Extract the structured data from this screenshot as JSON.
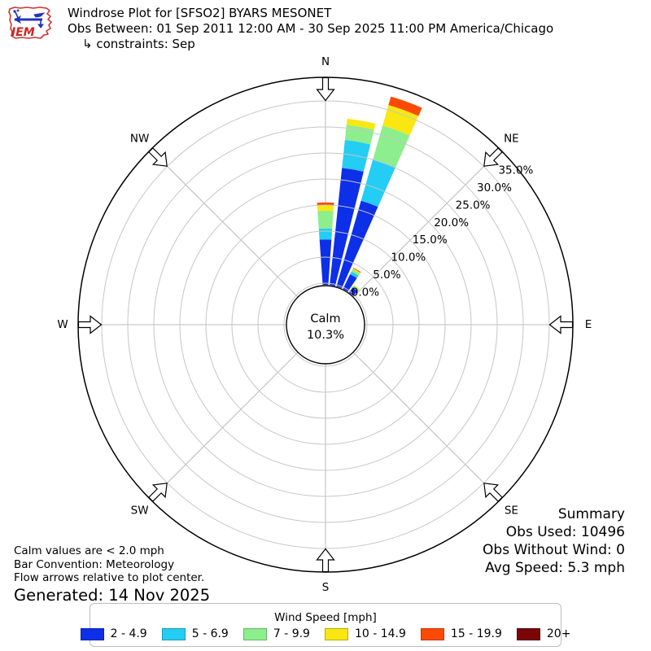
{
  "header": {
    "logo_text": "IEM",
    "title": "Windrose Plot for [SFSO2] BYARS MESONET",
    "subtitle": "Obs Between: 01 Sep 2011 12:00 AM - 30 Sep 2025 11:00 PM America/Chicago",
    "constraints": "↳ constraints: Sep"
  },
  "summary": {
    "title": "Summary",
    "obs_used": "Obs Used: 10496",
    "obs_without_wind": "Obs Without Wind: 0",
    "avg_speed": "Avg Speed: 5.3 mph"
  },
  "notes": {
    "calm_note": "Calm values are < 2.0 mph",
    "convention": "Bar Convention: Meteorology",
    "arrows_note": "Flow arrows relative to plot center.",
    "generated": "Generated: 14 Nov 2025"
  },
  "chart_data": {
    "type": "windrose-stacked-polar-bar",
    "legend_title": "Wind Speed [mph]",
    "calm": {
      "label": "Calm",
      "percent_label": "10.3%",
      "percent": 10.3,
      "threshold_mph": 2.0
    },
    "compass": [
      {
        "label": "N",
        "angle": 0
      },
      {
        "label": "NE",
        "angle": 45
      },
      {
        "label": "E",
        "angle": 90
      },
      {
        "label": "SE",
        "angle": 135
      },
      {
        "label": "S",
        "angle": 180
      },
      {
        "label": "SW",
        "angle": 225
      },
      {
        "label": "W",
        "angle": 270
      },
      {
        "label": "NW",
        "angle": 315
      }
    ],
    "ring_ticks": [
      {
        "label": "0.0%",
        "percent": 0
      },
      {
        "label": "5.0%",
        "percent": 5
      },
      {
        "label": "10.0%",
        "percent": 10
      },
      {
        "label": "15.0%",
        "percent": 15
      },
      {
        "label": "20.0%",
        "percent": 20
      },
      {
        "label": "25.0%",
        "percent": 25
      },
      {
        "label": "30.0%",
        "percent": 30
      },
      {
        "label": "35.0%",
        "percent": 35
      }
    ],
    "r_axis_max_percent": 39.4,
    "bar_width_deg": 8,
    "directions_deg": [
      0,
      10,
      20,
      30,
      40
    ],
    "series": [
      {
        "name": "2 - 4.9",
        "color": "#0d2fe8",
        "values": [
          8.4,
          22.3,
          16.8,
          2.8,
          0.9
        ]
      },
      {
        "name": "5 - 6.9",
        "color": "#24cdf3",
        "values": [
          2.1,
          5.4,
          8.3,
          0.6,
          0.2
        ]
      },
      {
        "name": "7 - 9.9",
        "color": "#8cee8c",
        "values": [
          3.4,
          2.9,
          6.7,
          0.4,
          0.2
        ]
      },
      {
        "name": "10 - 14.9",
        "color": "#f8e711",
        "values": [
          1.1,
          1.2,
          4.1,
          0.25,
          0.15
        ]
      },
      {
        "name": "15 - 19.9",
        "color": "#fc4a03",
        "values": [
          0.5,
          0,
          1.7,
          0.15,
          0
        ]
      },
      {
        "name": "20+",
        "color": "#7a0707",
        "values": [
          0,
          0,
          0,
          0,
          0
        ]
      }
    ]
  }
}
